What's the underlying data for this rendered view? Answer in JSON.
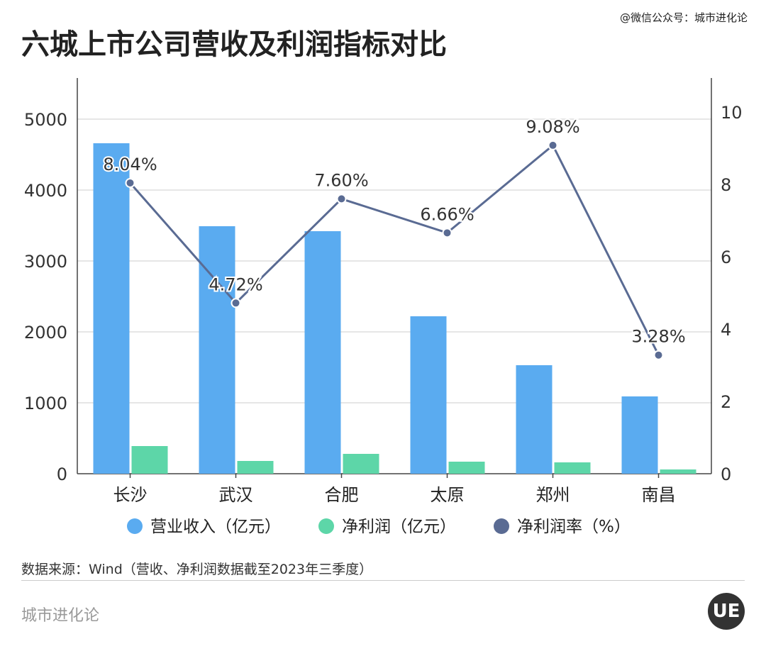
{
  "title": "六城上市公司营收及利润指标对比",
  "credit": "@微信公众号：城市进化论",
  "source": "数据来源：Wind（营收、净利润数据截至2023年三季度）",
  "brand": "城市进化论",
  "logo_text": "UE",
  "colors": {
    "revenue": "#5aabf0",
    "profit": "#5dd6a8",
    "rate": "#5a6b93"
  },
  "chart_data": {
    "type": "bar",
    "title": "六城上市公司营收及利润指标对比",
    "categories": [
      "长沙",
      "武汉",
      "合肥",
      "太原",
      "郑州",
      "南昌"
    ],
    "series": [
      {
        "name": "营业收入（亿元）",
        "type": "bar",
        "axis": "left",
        "values": [
          4660,
          3490,
          3420,
          2220,
          1530,
          1090
        ]
      },
      {
        "name": "净利润（亿元）",
        "type": "bar",
        "axis": "left",
        "values": [
          390,
          180,
          280,
          170,
          160,
          60
        ]
      },
      {
        "name": "净利润率（%）",
        "type": "line",
        "axis": "right",
        "values": [
          8.04,
          4.72,
          7.6,
          6.66,
          9.08,
          3.28
        ],
        "labels": [
          "8.04%",
          "4.72%",
          "7.60%",
          "6.66%",
          "9.08%",
          "3.28%"
        ]
      }
    ],
    "ylim_left": [
      0,
      5000
    ],
    "yticks_left": [
      "0",
      "1000",
      "2000",
      "3000",
      "4000",
      "5000"
    ],
    "ylim_right": [
      0,
      10
    ],
    "yticks_right": [
      "0",
      "2",
      "4",
      "6",
      "8",
      "10"
    ],
    "grid": true,
    "legend": "bottom"
  }
}
